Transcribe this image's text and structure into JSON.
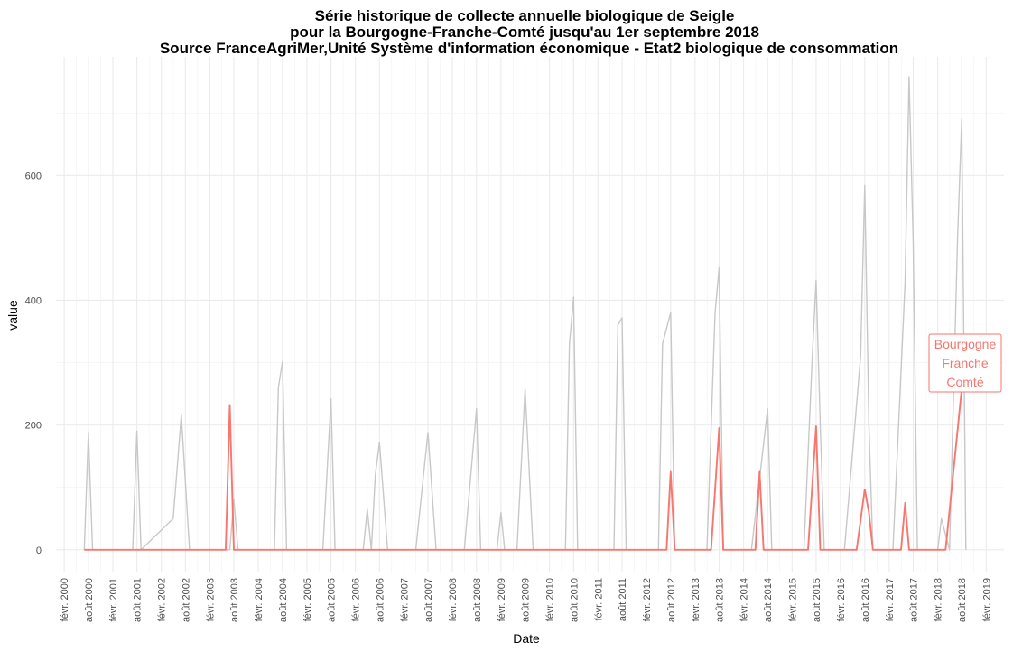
{
  "chart_data": {
    "type": "line",
    "title_lines": [
      "Série historique de collecte annuelle biologique de Seigle",
      "pour la Bourgogne-Franche-Comté jusqu'au 1er septembre 2018",
      "Source FranceAgriMer,Unité Système d'information économique - Etat2  biologique de consommation"
    ],
    "xlabel": "Date",
    "ylabel": "value",
    "ylim": [
      -35,
      790
    ],
    "y_ticks": [
      0,
      200,
      400,
      600
    ],
    "x_ticks": [
      {
        "label": "févr. 2000",
        "date": "2000-02-01"
      },
      {
        "label": "août 2000",
        "date": "2000-08-01"
      },
      {
        "label": "févr. 2001",
        "date": "2001-02-01"
      },
      {
        "label": "août 2001",
        "date": "2001-08-01"
      },
      {
        "label": "févr. 2002",
        "date": "2002-02-01"
      },
      {
        "label": "août 2002",
        "date": "2002-08-01"
      },
      {
        "label": "févr. 2003",
        "date": "2003-02-01"
      },
      {
        "label": "août 2003",
        "date": "2003-08-01"
      },
      {
        "label": "févr. 2004",
        "date": "2004-02-01"
      },
      {
        "label": "août 2004",
        "date": "2004-08-01"
      },
      {
        "label": "févr. 2005",
        "date": "2005-02-01"
      },
      {
        "label": "août 2005",
        "date": "2005-08-01"
      },
      {
        "label": "févr. 2006",
        "date": "2006-02-01"
      },
      {
        "label": "août 2006",
        "date": "2006-08-01"
      },
      {
        "label": "févr. 2007",
        "date": "2007-02-01"
      },
      {
        "label": "août 2007",
        "date": "2007-08-01"
      },
      {
        "label": "févr. 2008",
        "date": "2008-02-01"
      },
      {
        "label": "août 2008",
        "date": "2008-08-01"
      },
      {
        "label": "févr. 2009",
        "date": "2009-02-01"
      },
      {
        "label": "août 2009",
        "date": "2009-08-01"
      },
      {
        "label": "févr. 2010",
        "date": "2010-02-01"
      },
      {
        "label": "août 2010",
        "date": "2010-08-01"
      },
      {
        "label": "févr. 2011",
        "date": "2011-02-01"
      },
      {
        "label": "août 2011",
        "date": "2011-08-01"
      },
      {
        "label": "févr. 2012",
        "date": "2012-02-01"
      },
      {
        "label": "août 2012",
        "date": "2012-08-01"
      },
      {
        "label": "févr. 2013",
        "date": "2013-02-01"
      },
      {
        "label": "août 2013",
        "date": "2013-08-01"
      },
      {
        "label": "févr. 2014",
        "date": "2014-02-01"
      },
      {
        "label": "août 2014",
        "date": "2014-08-01"
      },
      {
        "label": "févr. 2015",
        "date": "2015-02-01"
      },
      {
        "label": "août 2015",
        "date": "2015-08-01"
      },
      {
        "label": "févr. 2016",
        "date": "2016-02-01"
      },
      {
        "label": "août 2016",
        "date": "2016-08-01"
      },
      {
        "label": "févr. 2017",
        "date": "2017-02-01"
      },
      {
        "label": "août 2017",
        "date": "2017-08-01"
      },
      {
        "label": "févr. 2018",
        "date": "2018-02-01"
      },
      {
        "label": "août 2018",
        "date": "2018-08-01"
      },
      {
        "label": "févr. 2019",
        "date": "2019-02-01"
      }
    ],
    "grid": true,
    "colors": {
      "background_series": "#c8c8c8",
      "highlight_series": "#f8766d"
    },
    "series": [
      {
        "highlight": false,
        "points": [
          [
            "2000-07-01",
            0
          ],
          [
            "2000-08-01",
            188
          ],
          [
            "2000-09-01",
            0
          ],
          [
            "2001-07-01",
            0
          ],
          [
            "2001-08-01",
            190
          ],
          [
            "2001-09-01",
            0
          ],
          [
            "2002-05-01",
            50
          ],
          [
            "2002-07-01",
            216
          ],
          [
            "2002-09-01",
            0
          ],
          [
            "2003-07-01",
            0
          ],
          [
            "2003-08-01",
            80
          ],
          [
            "2003-09-01",
            0
          ],
          [
            "2004-06-01",
            0
          ],
          [
            "2004-07-01",
            260
          ],
          [
            "2004-08-01",
            302
          ],
          [
            "2004-09-01",
            0
          ],
          [
            "2005-06-01",
            0
          ],
          [
            "2005-08-01",
            242
          ],
          [
            "2005-09-01",
            0
          ],
          [
            "2006-04-01",
            0
          ],
          [
            "2006-05-01",
            65
          ],
          [
            "2006-06-01",
            0
          ],
          [
            "2006-07-01",
            120
          ],
          [
            "2006-08-01",
            172
          ],
          [
            "2006-10-01",
            0
          ],
          [
            "2007-05-01",
            0
          ],
          [
            "2007-08-01",
            188
          ],
          [
            "2007-10-01",
            0
          ],
          [
            "2008-05-01",
            0
          ],
          [
            "2008-08-01",
            226
          ],
          [
            "2008-09-01",
            0
          ],
          [
            "2009-01-01",
            0
          ],
          [
            "2009-02-01",
            60
          ],
          [
            "2009-03-01",
            0
          ],
          [
            "2009-06-01",
            0
          ],
          [
            "2009-08-01",
            258
          ],
          [
            "2009-10-01",
            0
          ],
          [
            "2010-06-01",
            0
          ],
          [
            "2010-07-01",
            330
          ],
          [
            "2010-08-01",
            405
          ],
          [
            "2010-09-01",
            0
          ],
          [
            "2011-06-01",
            0
          ],
          [
            "2011-07-01",
            360
          ],
          [
            "2011-08-01",
            372
          ],
          [
            "2011-09-01",
            0
          ],
          [
            "2012-05-01",
            0
          ],
          [
            "2012-06-01",
            330
          ],
          [
            "2012-08-01",
            380
          ],
          [
            "2012-09-01",
            0
          ],
          [
            "2013-05-01",
            0
          ],
          [
            "2013-07-01",
            380
          ],
          [
            "2013-08-01",
            452
          ],
          [
            "2013-09-01",
            0
          ],
          [
            "2014-04-01",
            0
          ],
          [
            "2014-08-01",
            226
          ],
          [
            "2014-09-01",
            0
          ],
          [
            "2015-05-01",
            0
          ],
          [
            "2015-07-01",
            300
          ],
          [
            "2015-08-01",
            432
          ],
          [
            "2015-09-01",
            200
          ],
          [
            "2015-10-01",
            0
          ],
          [
            "2016-03-01",
            0
          ],
          [
            "2016-07-01",
            310
          ],
          [
            "2016-08-01",
            584
          ],
          [
            "2016-09-01",
            200
          ],
          [
            "2016-10-01",
            0
          ],
          [
            "2017-03-01",
            0
          ],
          [
            "2017-06-01",
            430
          ],
          [
            "2017-07-01",
            758
          ],
          [
            "2017-08-01",
            490
          ],
          [
            "2017-09-01",
            0
          ],
          [
            "2018-02-01",
            0
          ],
          [
            "2018-03-01",
            50
          ],
          [
            "2018-05-01",
            0
          ],
          [
            "2018-07-01",
            500
          ],
          [
            "2018-08-01",
            690
          ],
          [
            "2018-09-01",
            0
          ]
        ]
      },
      {
        "highlight": true,
        "name": "Bourgogne Franche Comté",
        "points": [
          [
            "2000-07-01",
            0
          ],
          [
            "2003-06-01",
            0
          ],
          [
            "2003-07-01",
            232
          ],
          [
            "2003-08-01",
            0
          ],
          [
            "2012-07-01",
            0
          ],
          [
            "2012-08-01",
            125
          ],
          [
            "2012-09-01",
            0
          ],
          [
            "2013-06-01",
            0
          ],
          [
            "2013-08-01",
            195
          ],
          [
            "2013-09-01",
            0
          ],
          [
            "2014-05-01",
            0
          ],
          [
            "2014-06-01",
            125
          ],
          [
            "2014-07-01",
            0
          ],
          [
            "2015-06-01",
            0
          ],
          [
            "2015-08-01",
            198
          ],
          [
            "2015-09-01",
            0
          ],
          [
            "2016-06-01",
            0
          ],
          [
            "2016-08-01",
            97
          ],
          [
            "2016-09-01",
            60
          ],
          [
            "2016-10-01",
            0
          ],
          [
            "2017-05-01",
            0
          ],
          [
            "2017-06-01",
            75
          ],
          [
            "2017-07-01",
            0
          ],
          [
            "2018-04-01",
            0
          ],
          [
            "2018-08-01",
            258
          ]
        ]
      }
    ],
    "label": {
      "lines": [
        "Bourgogne",
        "Franche",
        "Comté"
      ]
    }
  }
}
